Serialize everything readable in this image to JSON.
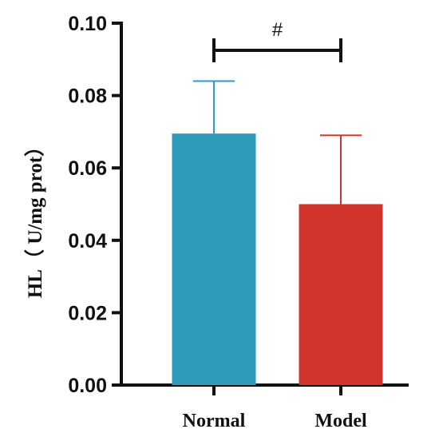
{
  "chart_data": {
    "type": "bar",
    "categories": [
      "Normal",
      "Model"
    ],
    "values": [
      0.0695,
      0.05
    ],
    "error_upper": [
      0.084,
      0.069
    ],
    "colors": [
      "#2E9DBC",
      "#D0342C"
    ],
    "ylabel": "HL（ U/mg prot）",
    "ylim": [
      0,
      0.1
    ],
    "yticks": [
      "0.00",
      "0.02",
      "0.04",
      "0.06",
      "0.08",
      "0.10"
    ],
    "ytick_values": [
      0,
      0.02,
      0.04,
      0.06,
      0.08,
      0.1
    ],
    "grid": false,
    "annotation": {
      "text": "#",
      "between": [
        "Normal",
        "Model"
      ],
      "y": 0.0925
    }
  }
}
